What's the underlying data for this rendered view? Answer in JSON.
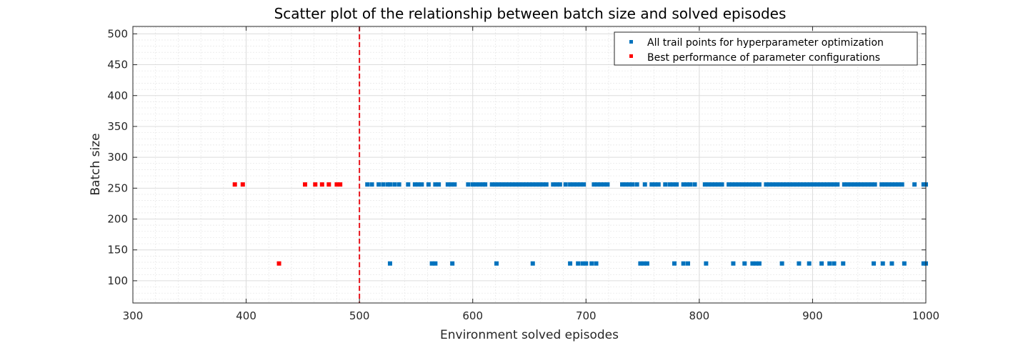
{
  "chart_data": {
    "type": "scatter",
    "title": "Scatter plot of the relationship between batch size and solved episodes",
    "xlabel": "Environment solved episodes",
    "ylabel": "Batch size",
    "xlim": [
      300,
      1000
    ],
    "ylim": [
      64,
      512
    ],
    "xticks": [
      300,
      400,
      500,
      600,
      700,
      800,
      900,
      1000
    ],
    "yticks": [
      100,
      150,
      200,
      250,
      300,
      350,
      400,
      450,
      500
    ],
    "grid": true,
    "minor_grid": true,
    "legend_position": "top-right",
    "reference_line": {
      "x": 500,
      "style": "dashed",
      "color": "#e8131b"
    },
    "series": [
      {
        "name": "All trail points for hyperparameter optimization",
        "color": "#0072bd",
        "points": [
          [
            507,
            256
          ],
          [
            511,
            256
          ],
          [
            517,
            256
          ],
          [
            521,
            256
          ],
          [
            525,
            256
          ],
          [
            527,
            256
          ],
          [
            531,
            256
          ],
          [
            535,
            256
          ],
          [
            543,
            256
          ],
          [
            549,
            256
          ],
          [
            552,
            256
          ],
          [
            555,
            256
          ],
          [
            561,
            256
          ],
          [
            567,
            256
          ],
          [
            570,
            256
          ],
          [
            578,
            256
          ],
          [
            581,
            256
          ],
          [
            584,
            256
          ],
          [
            596,
            256
          ],
          [
            600,
            256
          ],
          [
            603,
            256
          ],
          [
            606,
            256
          ],
          [
            609,
            256
          ],
          [
            611,
            256
          ],
          [
            617,
            256
          ],
          [
            620,
            256
          ],
          [
            623,
            256
          ],
          [
            626,
            256
          ],
          [
            629,
            256
          ],
          [
            632,
            256
          ],
          [
            635,
            256
          ],
          [
            638,
            256
          ],
          [
            641,
            256
          ],
          [
            644,
            256
          ],
          [
            647,
            256
          ],
          [
            650,
            256
          ],
          [
            653,
            256
          ],
          [
            656,
            256
          ],
          [
            659,
            256
          ],
          [
            662,
            256
          ],
          [
            665,
            256
          ],
          [
            671,
            256
          ],
          [
            674,
            256
          ],
          [
            677,
            256
          ],
          [
            682,
            256
          ],
          [
            686,
            256
          ],
          [
            689,
            256
          ],
          [
            692,
            256
          ],
          [
            695,
            256
          ],
          [
            698,
            256
          ],
          [
            707,
            256
          ],
          [
            710,
            256
          ],
          [
            713,
            256
          ],
          [
            716,
            256
          ],
          [
            719,
            256
          ],
          [
            732,
            256
          ],
          [
            735,
            256
          ],
          [
            738,
            256
          ],
          [
            741,
            256
          ],
          [
            745,
            256
          ],
          [
            752,
            256
          ],
          [
            758,
            256
          ],
          [
            761,
            256
          ],
          [
            764,
            256
          ],
          [
            770,
            256
          ],
          [
            774,
            256
          ],
          [
            777,
            256
          ],
          [
            780,
            256
          ],
          [
            786,
            256
          ],
          [
            789,
            256
          ],
          [
            792,
            256
          ],
          [
            796,
            256
          ],
          [
            805,
            256
          ],
          [
            808,
            256
          ],
          [
            811,
            256
          ],
          [
            814,
            256
          ],
          [
            817,
            256
          ],
          [
            820,
            256
          ],
          [
            826,
            256
          ],
          [
            829,
            256
          ],
          [
            832,
            256
          ],
          [
            835,
            256
          ],
          [
            838,
            256
          ],
          [
            841,
            256
          ],
          [
            844,
            256
          ],
          [
            847,
            256
          ],
          [
            850,
            256
          ],
          [
            853,
            256
          ],
          [
            859,
            256
          ],
          [
            862,
            256
          ],
          [
            865,
            256
          ],
          [
            868,
            256
          ],
          [
            871,
            256
          ],
          [
            874,
            256
          ],
          [
            877,
            256
          ],
          [
            880,
            256
          ],
          [
            883,
            256
          ],
          [
            886,
            256
          ],
          [
            889,
            256
          ],
          [
            892,
            256
          ],
          [
            895,
            256
          ],
          [
            898,
            256
          ],
          [
            901,
            256
          ],
          [
            904,
            256
          ],
          [
            907,
            256
          ],
          [
            910,
            256
          ],
          [
            913,
            256
          ],
          [
            916,
            256
          ],
          [
            919,
            256
          ],
          [
            922,
            256
          ],
          [
            928,
            256
          ],
          [
            931,
            256
          ],
          [
            934,
            256
          ],
          [
            937,
            256
          ],
          [
            940,
            256
          ],
          [
            943,
            256
          ],
          [
            946,
            256
          ],
          [
            949,
            256
          ],
          [
            952,
            256
          ],
          [
            955,
            256
          ],
          [
            961,
            256
          ],
          [
            964,
            256
          ],
          [
            967,
            256
          ],
          [
            970,
            256
          ],
          [
            973,
            256
          ],
          [
            976,
            256
          ],
          [
            979,
            256
          ],
          [
            990,
            256
          ],
          [
            998,
            256
          ],
          [
            1000,
            256
          ],
          [
            527,
            128
          ],
          [
            564,
            128
          ],
          [
            567,
            128
          ],
          [
            582,
            128
          ],
          [
            621,
            128
          ],
          [
            653,
            128
          ],
          [
            686,
            128
          ],
          [
            693,
            128
          ],
          [
            697,
            128
          ],
          [
            700,
            128
          ],
          [
            705,
            128
          ],
          [
            709,
            128
          ],
          [
            748,
            128
          ],
          [
            751,
            128
          ],
          [
            754,
            128
          ],
          [
            778,
            128
          ],
          [
            786,
            128
          ],
          [
            790,
            128
          ],
          [
            806,
            128
          ],
          [
            830,
            128
          ],
          [
            840,
            128
          ],
          [
            847,
            128
          ],
          [
            850,
            128
          ],
          [
            853,
            128
          ],
          [
            873,
            128
          ],
          [
            888,
            128
          ],
          [
            897,
            128
          ],
          [
            908,
            128
          ],
          [
            915,
            128
          ],
          [
            919,
            128
          ],
          [
            927,
            128
          ],
          [
            954,
            128
          ],
          [
            962,
            128
          ],
          [
            970,
            128
          ],
          [
            981,
            128
          ],
          [
            998,
            128
          ],
          [
            1000,
            128
          ]
        ]
      },
      {
        "name": "Best performance of parameter configurations",
        "color": "#ff0000",
        "points": [
          [
            390,
            256
          ],
          [
            397,
            256
          ],
          [
            452,
            256
          ],
          [
            461,
            256
          ],
          [
            467,
            256
          ],
          [
            473,
            256
          ],
          [
            480,
            256
          ],
          [
            483,
            256
          ],
          [
            429,
            128
          ]
        ]
      }
    ]
  }
}
